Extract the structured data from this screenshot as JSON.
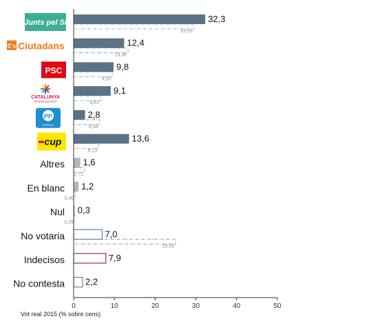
{
  "chart_data": {
    "type": "bar",
    "orientation": "horizontal",
    "xlim": [
      0,
      50
    ],
    "xticks": [
      "0",
      "10",
      "20",
      "30",
      "40",
      "50"
    ],
    "xlabel": "Vot real 2015 (% sobre cens)",
    "grid": false,
    "categories": [
      {
        "label": "Junts pel Sí",
        "logo": true,
        "logo_text": "Junts pel Sí",
        "logo_color": "#3cae94",
        "value": 32.3,
        "value_label": "32,3",
        "previous": 29.55,
        "previous_label": "29,55",
        "style": "filled"
      },
      {
        "label": "Ciutadans",
        "logo": true,
        "logo_text": "Ciutadans",
        "logo_mark": "C's",
        "logo_color": "#f07a1e",
        "value": 12.4,
        "value_label": "12,4",
        "previous": 13.36,
        "previous_label": "13,36",
        "style": "filled"
      },
      {
        "label": "PSC",
        "logo": true,
        "logo_text": "PSC",
        "logo_color": "#e30613",
        "value": 9.8,
        "value_label": "9,8",
        "previous": 9.5,
        "previous_label": "9,50",
        "style": "filled"
      },
      {
        "label": "Catalunya Sí que es Pot",
        "logo": true,
        "logo_text": "CATALUNYA",
        "logo_subtext": "SÍ QUE ES POT",
        "logo_color": "#c2185b",
        "value": 9.1,
        "value_label": "9,1",
        "previous": 6.67,
        "previous_label": "6,67",
        "style": "filled"
      },
      {
        "label": "PP",
        "logo": true,
        "logo_text": "PP",
        "logo_subtext": "CATALÀ",
        "logo_color": "#1d8fd0",
        "value": 2.8,
        "value_label": "2,8",
        "previous": 6.34,
        "previous_label": "6,34",
        "style": "filled"
      },
      {
        "label": "CUP",
        "logo": true,
        "logo_text": "cup",
        "logo_color": "#ffe600",
        "value": 13.6,
        "value_label": "13,6",
        "previous": 6.13,
        "previous_label": "6,13",
        "style": "filled"
      },
      {
        "label": "Altres",
        "logo": false,
        "value": 1.6,
        "value_label": "1,6",
        "previous": 2.71,
        "previous_label": "2,71",
        "style": "light"
      },
      {
        "label": "En blanc",
        "logo": false,
        "value": 1.2,
        "value_label": "1,2",
        "previous": 0.4,
        "previous_label": "0,40",
        "style": "light"
      },
      {
        "label": "Nul",
        "logo": false,
        "value": 0.3,
        "value_label": "0,3",
        "previous": 0.29,
        "previous_label": "0,29",
        "style": "light"
      },
      {
        "label": "No votaria",
        "logo": false,
        "value": 7.0,
        "value_label": "7,0",
        "previous": 25.05,
        "previous_label": "25,05",
        "style": "outline-blue"
      },
      {
        "label": "Indecisos",
        "logo": false,
        "value": 7.9,
        "value_label": "7,9",
        "previous": null,
        "previous_label": null,
        "style": "outline-red",
        "label_color": "#8b1a3a"
      },
      {
        "label": "No contesta",
        "logo": false,
        "value": 2.2,
        "value_label": "2,2",
        "previous": null,
        "previous_label": null,
        "style": "outline-blue"
      }
    ],
    "colors": {
      "filled": "#5b7385",
      "light": "#a9b8c2",
      "outline_blue": "#5b86ad",
      "outline_red": "#a0284f",
      "previous": "#6d8aa3"
    }
  }
}
